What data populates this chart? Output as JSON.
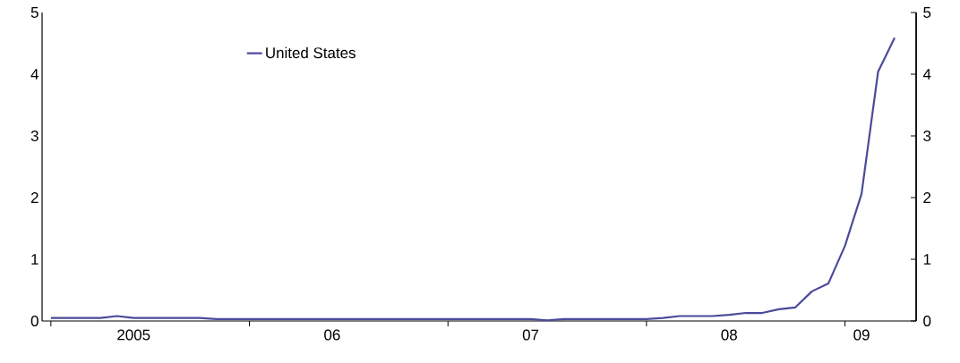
{
  "chart_data": {
    "type": "line",
    "x": [
      "2005-01",
      "2005-02",
      "2005-03",
      "2005-04",
      "2005-05",
      "2005-06",
      "2005-07",
      "2005-08",
      "2005-09",
      "2005-10",
      "2005-11",
      "2005-12",
      "2006-01",
      "2006-02",
      "2006-03",
      "2006-04",
      "2006-05",
      "2006-06",
      "2006-07",
      "2006-08",
      "2006-09",
      "2006-10",
      "2006-11",
      "2006-12",
      "2007-01",
      "2007-02",
      "2007-03",
      "2007-04",
      "2007-05",
      "2007-06",
      "2007-07",
      "2007-08",
      "2007-09",
      "2007-10",
      "2007-11",
      "2007-12",
      "2008-01",
      "2008-02",
      "2008-03",
      "2008-04",
      "2008-05",
      "2008-06",
      "2008-07",
      "2008-08",
      "2008-09",
      "2008-10",
      "2008-11",
      "2008-12",
      "2009-01",
      "2009-02",
      "2009-03",
      "2009-04"
    ],
    "series": [
      {
        "name": "United States",
        "color": "#4b4a9a",
        "values": [
          0.05,
          0.05,
          0.05,
          0.05,
          0.08,
          0.05,
          0.05,
          0.05,
          0.05,
          0.05,
          0.03,
          0.03,
          0.03,
          0.03,
          0.03,
          0.03,
          0.03,
          0.03,
          0.03,
          0.03,
          0.03,
          0.03,
          0.03,
          0.03,
          0.03,
          0.03,
          0.03,
          0.03,
          0.03,
          0.03,
          0.01,
          0.03,
          0.03,
          0.03,
          0.03,
          0.03,
          0.03,
          0.05,
          0.08,
          0.08,
          0.08,
          0.1,
          0.13,
          0.13,
          0.19,
          0.22,
          0.48,
          0.61,
          1.22,
          2.06,
          4.04,
          4.59
        ]
      }
    ],
    "xlim": [
      "2004-12-15",
      "2009-05-10"
    ],
    "xticks": [
      {
        "value": "2005-01",
        "label": null
      },
      {
        "value": "2005-06",
        "label": "2005"
      },
      {
        "value": "2006-01",
        "label": null
      },
      {
        "value": "2006-06",
        "label": "06"
      },
      {
        "value": "2007-01",
        "label": null
      },
      {
        "value": "2007-06",
        "label": "07"
      },
      {
        "value": "2008-01",
        "label": null
      },
      {
        "value": "2008-06",
        "label": "08"
      },
      {
        "value": "2009-01",
        "label": null
      },
      {
        "value": "2009-02",
        "label": "09"
      }
    ],
    "ylim": [
      0,
      5
    ],
    "yticks": [
      0,
      1,
      2,
      3,
      4,
      5
    ],
    "y2lim": [
      0,
      5
    ],
    "y2ticks": [
      0,
      1,
      2,
      3,
      4,
      5
    ],
    "legend": "top left"
  }
}
